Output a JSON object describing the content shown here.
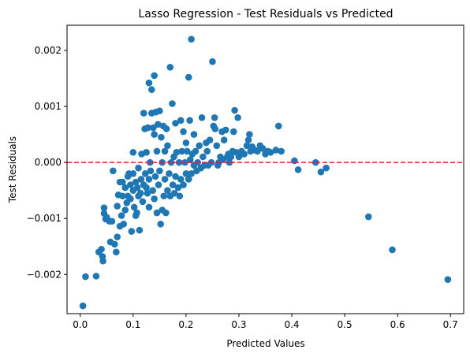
{
  "chart_data": {
    "type": "scatter",
    "title": "Lasso Regression - Test Residuals vs Predicted",
    "xlabel": "Predicted Values",
    "ylabel": "Test Residuals",
    "xlim": [
      -0.025,
      0.725
    ],
    "ylim": [
      -0.0027,
      0.00245
    ],
    "x_ticks": [
      0.0,
      0.1,
      0.2,
      0.3,
      0.4,
      0.5,
      0.6,
      0.7
    ],
    "x_tick_labels": [
      "0.0",
      "0.1",
      "0.2",
      "0.3",
      "0.4",
      "0.5",
      "0.6",
      "0.7"
    ],
    "y_ticks": [
      -0.002,
      -0.001,
      0.0,
      0.001,
      0.002
    ],
    "y_tick_labels": [
      "−0.002",
      "−0.001",
      "0.000",
      "0.001",
      "0.002"
    ],
    "grid": false,
    "reference_line": {
      "y": 0.0,
      "color": "#d62728",
      "style": "dashed"
    },
    "point_color": "#1f77b4",
    "points": [
      [
        0.005,
        -0.00256
      ],
      [
        0.01,
        -0.00204
      ],
      [
        0.03,
        -0.00203
      ],
      [
        0.035,
        -0.0016
      ],
      [
        0.04,
        -0.00155
      ],
      [
        0.042,
        -0.00168
      ],
      [
        0.043,
        -0.00176
      ],
      [
        0.045,
        -0.00081
      ],
      [
        0.045,
        -0.00091
      ],
      [
        0.048,
        -0.00101
      ],
      [
        0.05,
        -0.00098
      ],
      [
        0.055,
        -0.00105
      ],
      [
        0.057,
        -0.00142
      ],
      [
        0.06,
        -0.00105
      ],
      [
        0.062,
        -0.00015
      ],
      [
        0.065,
        -0.00146
      ],
      [
        0.068,
        -0.0016
      ],
      [
        0.07,
        -0.00133
      ],
      [
        0.07,
        -0.00078
      ],
      [
        0.072,
        -0.00058
      ],
      [
        0.075,
        -0.00114
      ],
      [
        0.075,
        -0.00035
      ],
      [
        0.078,
        -0.00095
      ],
      [
        0.08,
        -0.0006
      ],
      [
        0.08,
        -0.00035
      ],
      [
        0.082,
        -0.0011
      ],
      [
        0.085,
        -0.00085
      ],
      [
        0.085,
        -0.00045
      ],
      [
        0.088,
        -0.00072
      ],
      [
        0.09,
        -0.0006
      ],
      [
        0.09,
        -0.00025
      ],
      [
        0.092,
        -0.0002
      ],
      [
        0.095,
        -0.00065
      ],
      [
        0.095,
        -0.0004
      ],
      [
        0.097,
        -0.00123
      ],
      [
        0.1,
        -0.0005
      ],
      [
        0.1,
        -0.0002
      ],
      [
        0.1,
        0.00018
      ],
      [
        0.102,
        -0.0008
      ],
      [
        0.105,
        -0.00095
      ],
      [
        0.105,
        -0.00035
      ],
      [
        0.107,
        -0.0009
      ],
      [
        0.108,
        -0.00045
      ],
      [
        0.11,
        -0.0006
      ],
      [
        0.11,
        -0.0001
      ],
      [
        0.112,
        -0.00121
      ],
      [
        0.114,
        -0.00055
      ],
      [
        0.115,
        -0.0003
      ],
      [
        0.116,
        0.00015
      ],
      [
        0.118,
        -0.0007
      ],
      [
        0.12,
        -0.0004
      ],
      [
        0.12,
        0.00088
      ],
      [
        0.122,
        0.0006
      ],
      [
        0.123,
        -0.0002
      ],
      [
        0.125,
        -0.00045
      ],
      [
        0.125,
        0.00018
      ],
      [
        0.127,
        -0.00055
      ],
      [
        0.128,
        0.00062
      ],
      [
        0.13,
        -0.0008
      ],
      [
        0.13,
        -0.0003
      ],
      [
        0.13,
        0.00142
      ],
      [
        0.132,
        0.0
      ],
      [
        0.133,
        -0.00015
      ],
      [
        0.135,
        0.00088
      ],
      [
        0.135,
        0.0013
      ],
      [
        0.137,
        -0.0005
      ],
      [
        0.138,
        0.00062
      ],
      [
        0.14,
        -0.00065
      ],
      [
        0.14,
        0.0005
      ],
      [
        0.14,
        0.00155
      ],
      [
        0.142,
        -0.00025
      ],
      [
        0.143,
        0.0009
      ],
      [
        0.145,
        -0.0009
      ],
      [
        0.145,
        0.0002
      ],
      [
        0.147,
        0.00068
      ],
      [
        0.148,
        -0.0004
      ],
      [
        0.15,
        -0.00015
      ],
      [
        0.15,
        0.00092
      ],
      [
        0.152,
        -0.0011
      ],
      [
        0.153,
        0.00045
      ],
      [
        0.155,
        -0.00085
      ],
      [
        0.155,
        0.0
      ],
      [
        0.157,
        0.00065
      ],
      [
        0.158,
        -0.0006
      ],
      [
        0.16,
        -0.0003
      ],
      [
        0.16,
        0.0002
      ],
      [
        0.162,
        -0.0009
      ],
      [
        0.163,
        0.0006
      ],
      [
        0.165,
        -0.0005
      ],
      [
        0.165,
        0.0003
      ],
      [
        0.168,
        -0.0002
      ],
      [
        0.17,
        0.0017
      ],
      [
        0.17,
        -0.0006
      ],
      [
        0.172,
        0.0
      ],
      [
        0.174,
        0.00105
      ],
      [
        0.175,
        -0.0004
      ],
      [
        0.177,
        0.0001
      ],
      [
        0.178,
        -0.00055
      ],
      [
        0.18,
        -0.00025
      ],
      [
        0.18,
        0.0007
      ],
      [
        0.182,
        0.00018
      ],
      [
        0.185,
        -0.00045
      ],
      [
        0.187,
        0.0
      ],
      [
        0.188,
        -0.0006
      ],
      [
        0.19,
        -0.0003
      ],
      [
        0.19,
        0.00075
      ],
      [
        0.192,
        0.0002
      ],
      [
        0.195,
        -0.0004
      ],
      [
        0.195,
        0.00055
      ],
      [
        0.198,
        0.0
      ],
      [
        0.2,
        -0.0002
      ],
      [
        0.2,
        0.00035
      ],
      [
        0.202,
        0.0002
      ],
      [
        0.205,
        0.00152
      ],
      [
        0.205,
        -0.0003
      ],
      [
        0.207,
        0.00075
      ],
      [
        0.208,
        5e-05
      ],
      [
        0.21,
        0.0022
      ],
      [
        0.21,
        -0.0002
      ],
      [
        0.212,
        0.00015
      ],
      [
        0.215,
        0.0005
      ],
      [
        0.215,
        -5e-05
      ],
      [
        0.218,
        0.0002
      ],
      [
        0.22,
        -0.00015
      ],
      [
        0.222,
        0.0
      ],
      [
        0.225,
        0.0003
      ],
      [
        0.228,
        -0.0001
      ],
      [
        0.23,
        0.0008
      ],
      [
        0.232,
        0.0001
      ],
      [
        0.235,
        -5e-05
      ],
      [
        0.238,
        0.00035
      ],
      [
        0.24,
        0.0002
      ],
      [
        0.242,
        -5e-05
      ],
      [
        0.245,
        0.0004
      ],
      [
        0.248,
        0.0
      ],
      [
        0.25,
        0.0018
      ],
      [
        0.252,
        0.00065
      ],
      [
        0.254,
        0.0008
      ],
      [
        0.255,
        0.0006
      ],
      [
        0.258,
        0.0003
      ],
      [
        0.26,
        -5e-05
      ],
      [
        0.262,
        0.0
      ],
      [
        0.265,
        0.0001
      ],
      [
        0.268,
        0.00055
      ],
      [
        0.27,
        5e-05
      ],
      [
        0.272,
        0.0004
      ],
      [
        0.275,
        0.00058
      ],
      [
        0.278,
        0.0001
      ],
      [
        0.28,
        0.00015
      ],
      [
        0.282,
        0.0
      ],
      [
        0.285,
        0.0001
      ],
      [
        0.288,
        0.0002
      ],
      [
        0.29,
        0.00055
      ],
      [
        0.292,
        0.00093
      ],
      [
        0.295,
        0.00018
      ],
      [
        0.298,
        0.0008
      ],
      [
        0.3,
        0.0001
      ],
      [
        0.305,
        0.0002
      ],
      [
        0.31,
        0.00015
      ],
      [
        0.315,
        0.0003
      ],
      [
        0.318,
        0.0004
      ],
      [
        0.32,
        0.0005
      ],
      [
        0.322,
        0.0002
      ],
      [
        0.325,
        0.00028
      ],
      [
        0.33,
        0.00022
      ],
      [
        0.335,
        0.0002
      ],
      [
        0.34,
        0.0003
      ],
      [
        0.345,
        0.00025
      ],
      [
        0.35,
        0.00015
      ],
      [
        0.355,
        0.0002
      ],
      [
        0.36,
        0.00018
      ],
      [
        0.37,
        0.00022
      ],
      [
        0.375,
        0.00065
      ],
      [
        0.38,
        0.0002
      ],
      [
        0.405,
        3e-05
      ],
      [
        0.412,
        -0.00013
      ],
      [
        0.445,
        0.0
      ],
      [
        0.455,
        -0.00017
      ],
      [
        0.465,
        -0.0001
      ],
      [
        0.545,
        -0.00097
      ],
      [
        0.59,
        -0.00156
      ],
      [
        0.695,
        -0.00209
      ]
    ]
  }
}
